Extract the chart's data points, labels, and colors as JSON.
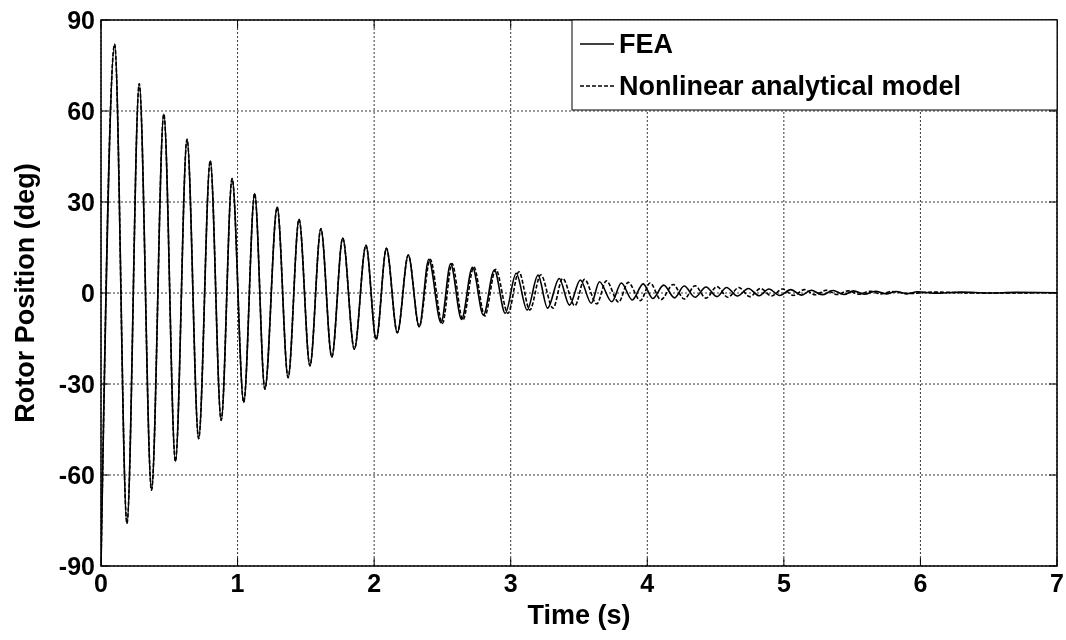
{
  "chart_data": {
    "type": "line",
    "xlabel": "Time (s)",
    "ylabel": "Rotor Position (deg)",
    "xlim": [
      0,
      7
    ],
    "xticks": [
      0,
      1,
      2,
      3,
      4,
      5,
      6,
      7
    ],
    "ylim": [
      -90,
      90
    ],
    "yticks": [
      -90,
      -60,
      -30,
      0,
      30,
      60,
      90
    ],
    "grid": true,
    "legend": "top right",
    "series": [
      {
        "name": "FEA",
        "color": "#000000",
        "line_style": "solid",
        "x": [
          0,
          0.1,
          0.19,
          0.28,
          0.37,
          0.46,
          0.545,
          0.63,
          0.715,
          0.8,
          0.88,
          0.96,
          1.045,
          1.125,
          1.2,
          1.29,
          1.37,
          1.45,
          1.53,
          1.61,
          1.69,
          1.77,
          1.855,
          1.94,
          2.015,
          2.09,
          2.17,
          2.25,
          2.33,
          2.4,
          2.49,
          2.56,
          2.64,
          2.72,
          2.8,
          2.88,
          2.96,
          3.04,
          3.12,
          3.2,
          3.27,
          3.355,
          3.43,
          3.51,
          3.59,
          3.65,
          3.74,
          3.81,
          3.89,
          3.97,
          4.04,
          4.12,
          4.2,
          4.27,
          4.35,
          4.43,
          4.51,
          4.58,
          4.66,
          4.74,
          4.82,
          4.89,
          4.97,
          5.05,
          5.13,
          5.2,
          5.28,
          5.36,
          5.44,
          5.51,
          5.59,
          5.67,
          5.75,
          5.82,
          5.9,
          5.98,
          6.1,
          6.3,
          6.5,
          6.7,
          7
        ],
        "values": [
          -90,
          82,
          -76,
          69,
          -65,
          59,
          -55.5,
          50.7,
          -48,
          43.6,
          -42,
          37.7,
          -36,
          32.8,
          -31.7,
          28.3,
          -27.9,
          24.3,
          -24,
          21.2,
          -21.1,
          18.1,
          -18.5,
          15.7,
          -15.3,
          14.7,
          -13.1,
          12.5,
          -11.1,
          11.1,
          -9.8,
          9.6,
          -8.7,
          8.5,
          -7.3,
          7.6,
          -6.7,
          6.5,
          -5.6,
          5.9,
          -5,
          4.8,
          -4,
          4.3,
          -3.4,
          3.7,
          -2.9,
          3.3,
          -2.3,
          3,
          -1.8,
          2.6,
          -1.6,
          2.3,
          -1.4,
          2,
          -1.2,
          1.8,
          -1,
          1.5,
          -0.9,
          1.3,
          -0.8,
          1.1,
          -0.7,
          0.9,
          -0.6,
          0.8,
          -0.5,
          0.7,
          -0.4,
          0.6,
          -0.3,
          0.5,
          -0.2,
          0.4,
          -0.1,
          0.3,
          0,
          0.2,
          0.1
        ]
      },
      {
        "name": "Nonlinear analytical model",
        "color": "#000000",
        "line_style": "dashed",
        "x": [
          0,
          0.1,
          0.19,
          0.28,
          0.37,
          0.46,
          0.545,
          0.63,
          0.715,
          0.8,
          0.88,
          0.96,
          1.045,
          1.125,
          1.2,
          1.29,
          1.37,
          1.45,
          1.53,
          1.61,
          1.69,
          1.77,
          1.855,
          1.94,
          2.015,
          2.09,
          2.17,
          2.25,
          2.33,
          2.41,
          2.5,
          2.57,
          2.65,
          2.73,
          2.81,
          2.89,
          2.98,
          3.06,
          3.14,
          3.22,
          3.31,
          3.38,
          3.47,
          3.54,
          3.63,
          3.7,
          3.79,
          3.86,
          3.95,
          4.02,
          4.1,
          4.19,
          4.27,
          4.35,
          4.43,
          4.51,
          4.59,
          4.67,
          4.75,
          4.83,
          4.91,
          4.99,
          5.07,
          5.15,
          5.23,
          5.31,
          5.39,
          5.47,
          5.55,
          5.63,
          5.71,
          5.79,
          5.9,
          6.1,
          6.4,
          7
        ],
        "values": [
          -90,
          82,
          -76,
          69,
          -65,
          59,
          -55.5,
          50.7,
          -48,
          43.6,
          -42,
          37.7,
          -36,
          32.8,
          -31.7,
          28.3,
          -27.9,
          24.3,
          -24,
          21.2,
          -21.1,
          18.1,
          -18.5,
          15.7,
          -15.3,
          14.7,
          -13.1,
          12.5,
          -11.1,
          11.1,
          -10,
          9.7,
          -8.9,
          8.6,
          -7.6,
          7.8,
          -6.7,
          7,
          -5.6,
          6,
          -5,
          4.8,
          -4.2,
          4.5,
          -3.6,
          4,
          -3,
          3.5,
          -2.5,
          3.3,
          -2.2,
          2.8,
          -2,
          2.4,
          -1.7,
          2.1,
          -1.4,
          1.8,
          -1.2,
          1.5,
          -1,
          1.3,
          -0.8,
          1.1,
          -0.6,
          0.9,
          -0.5,
          0.7,
          -0.4,
          0.6,
          -0.3,
          0.5,
          -0.2,
          0.3,
          0,
          0.1
        ]
      }
    ]
  }
}
